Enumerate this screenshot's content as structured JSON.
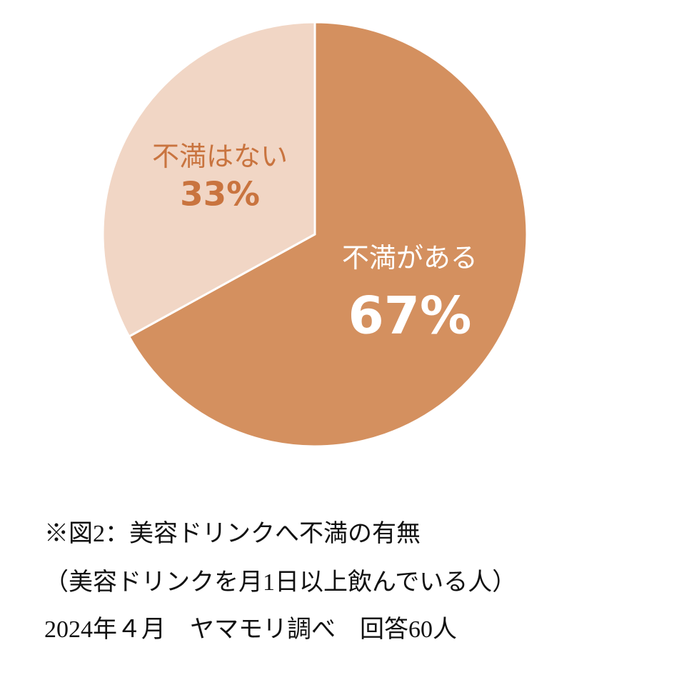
{
  "chart_data": {
    "type": "pie",
    "categories": [
      "不満がある",
      "不満はない"
    ],
    "values": [
      67,
      33
    ],
    "value_labels": [
      "67%",
      "33%"
    ],
    "colors": [
      "#d4905f",
      "#f1d6c5"
    ],
    "label_colors": [
      "#ffffff",
      "#c9743f"
    ],
    "caption": [
      "※図2：美容ドリンクへ不満の有無",
      "（美容ドリンクを月1日以上飲んでいる人）",
      "2024年４月　ヤマモリ調べ　回答60人"
    ]
  }
}
